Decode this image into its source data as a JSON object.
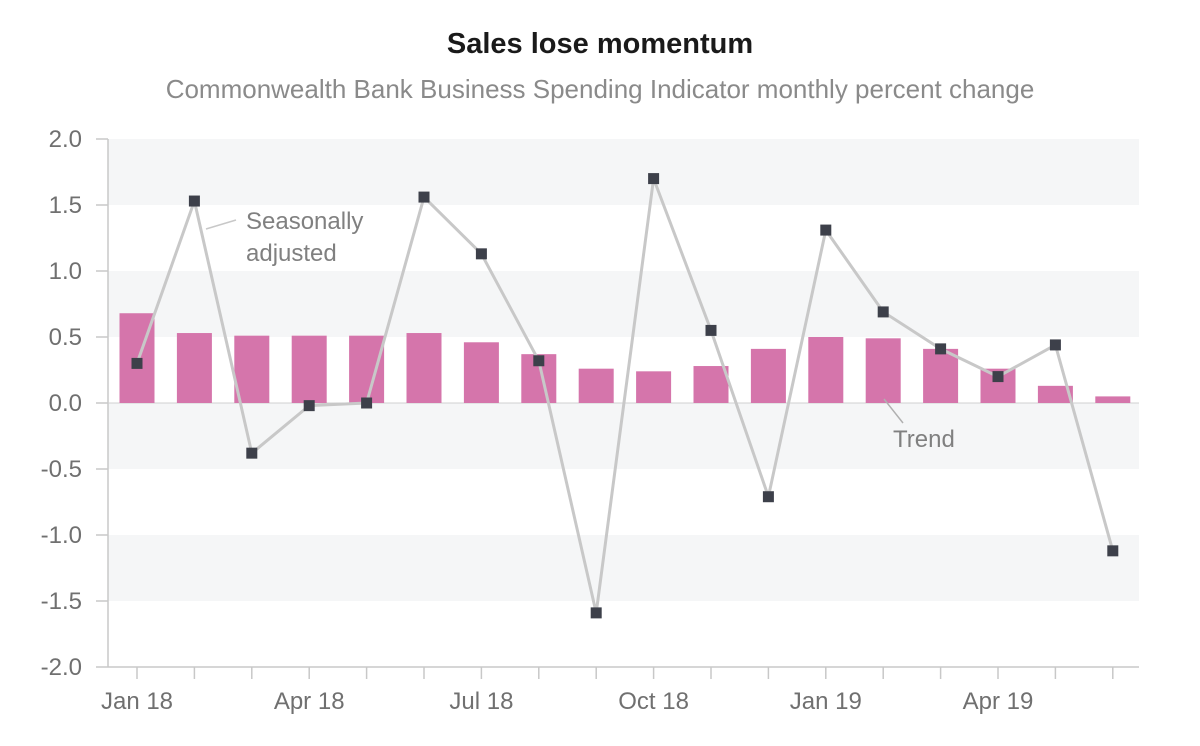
{
  "chart_data": {
    "type": "bar+line",
    "title": "Sales lose momentum",
    "subtitle": "Commonwealth Bank Business Spending Indicator monthly percent change",
    "xlabel": "",
    "ylabel": "",
    "ylim": [
      -2.0,
      2.0
    ],
    "yticks": [
      "2.0",
      "1.5",
      "1.0",
      "0.5",
      "0.0",
      "-0.5",
      "-1.0",
      "-1.5",
      "-2.0"
    ],
    "xtick_labels": [
      "Jan 18",
      "Apr 18",
      "Jul 18",
      "Oct 18",
      "Jan 19",
      "Apr 19"
    ],
    "categories": [
      "Jan 18",
      "Feb 18",
      "Mar 18",
      "Apr 18",
      "May 18",
      "Jun 18",
      "Jul 18",
      "Aug 18",
      "Sep 18",
      "Oct 18",
      "Nov 18",
      "Dec 18",
      "Jan 19",
      "Feb 19",
      "Mar 19",
      "Apr 19",
      "May 19",
      "Jun 19"
    ],
    "series": [
      {
        "name": "Trend",
        "kind": "bar",
        "color": "#d575ab",
        "values": [
          0.68,
          0.53,
          0.51,
          0.51,
          0.51,
          0.53,
          0.46,
          0.37,
          0.26,
          0.24,
          0.28,
          0.41,
          0.5,
          0.49,
          0.41,
          0.26,
          0.13,
          0.05
        ]
      },
      {
        "name": "Seasonally adjusted",
        "kind": "line",
        "color": "#c8c8c8",
        "marker_color": "#3d404a",
        "values": [
          0.3,
          1.53,
          -0.38,
          -0.02,
          0.0,
          1.56,
          1.13,
          0.32,
          -1.59,
          1.7,
          0.55,
          -0.71,
          1.31,
          0.69,
          0.41,
          0.2,
          0.44,
          -1.12
        ]
      }
    ],
    "annotations": {
      "seasonal_line1": "Seasonally",
      "seasonal_line2": "adjusted",
      "trend": "Trend"
    },
    "grid": "alternating horizontal bands",
    "legend": "none"
  }
}
